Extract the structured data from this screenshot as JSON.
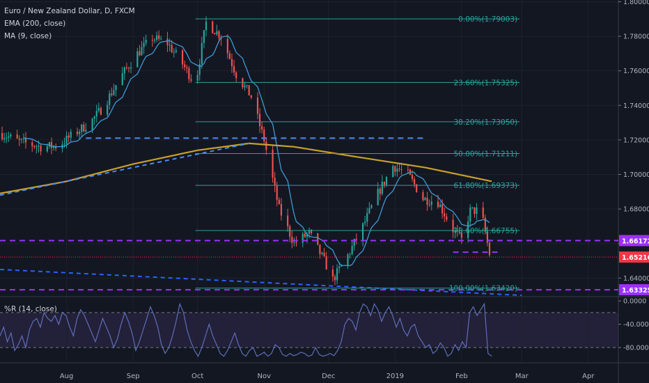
{
  "legend": {
    "main": "Euro / New Zealand Dollar, D, FXCM",
    "ema": "EMA (200, close)",
    "ma": "MA (9, close)",
    "wr": "%R (14, close)"
  },
  "colors": {
    "background": "#131722",
    "bull": "#26a69a",
    "bear": "#ef5350",
    "ema": "#c8a12a",
    "ma": "#3d9bd6",
    "fib": "#26a69a",
    "support_purple": "#9b30ff",
    "trend_blue": "#4c8bf5",
    "price_tag": "#f23645"
  },
  "chart_data": [
    {
      "type": "candlestick",
      "title": "Euro / New Zealand Dollar, D, FXCM",
      "x_range": [
        "2018-07-01",
        "2019-04-15"
      ],
      "ylim": [
        1.62966,
        1.80099
      ],
      "y_ticks": [
        "1.80000",
        "1.78000",
        "1.76000",
        "1.74000",
        "1.72000",
        "1.70000",
        "1.68000",
        "1.66000",
        "1.64000"
      ],
      "x_ticks": [
        {
          "date": "2018-08-01",
          "label": "Aug"
        },
        {
          "date": "2018-09-01",
          "label": "Sep"
        },
        {
          "date": "2018-10-01",
          "label": "Oct"
        },
        {
          "date": "2018-11-01",
          "label": "Nov"
        },
        {
          "date": "2018-12-01",
          "label": "Dec"
        },
        {
          "date": "2019-01-01",
          "label": "2019"
        },
        {
          "date": "2019-02-01",
          "label": "Feb"
        },
        {
          "date": "2019-03-01",
          "label": "Mar"
        },
        {
          "date": "2019-04-01",
          "label": "Apr"
        }
      ],
      "close_path": [
        [
          "2018-07-01",
          1.724
        ],
        [
          "2018-07-10",
          1.719
        ],
        [
          "2018-07-20",
          1.716
        ],
        [
          "2018-07-28",
          1.7165
        ],
        [
          "2018-08-05",
          1.724
        ],
        [
          "2018-08-12",
          1.73
        ],
        [
          "2018-08-18",
          1.739
        ],
        [
          "2018-08-26",
          1.756
        ],
        [
          "2018-09-03",
          1.77
        ],
        [
          "2018-09-10",
          1.779
        ],
        [
          "2018-09-17",
          1.776
        ],
        [
          "2018-09-24",
          1.764
        ],
        [
          "2018-09-30",
          1.752
        ],
        [
          "2018-10-05",
          1.788
        ],
        [
          "2018-10-12",
          1.78
        ],
        [
          "2018-10-19",
          1.758
        ],
        [
          "2018-10-26",
          1.745
        ],
        [
          "2018-11-01",
          1.72
        ],
        [
          "2018-11-08",
          1.68
        ],
        [
          "2018-11-15",
          1.66
        ],
        [
          "2018-11-22",
          1.666
        ],
        [
          "2018-11-29",
          1.65
        ],
        [
          "2018-12-03",
          1.639
        ],
        [
          "2018-12-10",
          1.653
        ],
        [
          "2018-12-17",
          1.67
        ],
        [
          "2018-12-24",
          1.689
        ],
        [
          "2018-12-31",
          1.705
        ],
        [
          "2019-01-07",
          1.7
        ],
        [
          "2019-01-14",
          1.686
        ],
        [
          "2019-01-21",
          1.684
        ],
        [
          "2019-01-28",
          1.668
        ],
        [
          "2019-02-01",
          1.662
        ],
        [
          "2019-02-05",
          1.679
        ],
        [
          "2019-02-10",
          1.679
        ],
        [
          "2019-02-14",
          1.654
        ]
      ],
      "ema200": [
        [
          "2018-07-01",
          1.689
        ],
        [
          "2018-08-01",
          1.696
        ],
        [
          "2018-09-01",
          1.706
        ],
        [
          "2018-10-01",
          1.714
        ],
        [
          "2018-10-25",
          1.718
        ],
        [
          "2018-11-15",
          1.716
        ],
        [
          "2018-12-15",
          1.71
        ],
        [
          "2019-01-15",
          1.704
        ],
        [
          "2019-02-15",
          1.696
        ]
      ],
      "fib_start": "2018-09-30",
      "fib_end": "2019-02-28",
      "fib_levels": [
        {
          "label": "0.00%(1.79003)",
          "value": 1.79003
        },
        {
          "label": "23.60%(1.75325)",
          "value": 1.75325
        },
        {
          "label": "38.20%(1.73050)",
          "value": 1.7305
        },
        {
          "label": "50.00%(1.71211)",
          "value": 1.71211
        },
        {
          "label": "61.80%(1.69373)",
          "value": 1.69373
        },
        {
          "label": "78.60%(1.66755)",
          "value": 1.66755
        },
        {
          "label": "100.00%(1.63420)",
          "value": 1.6342
        }
      ],
      "price_tags": [
        {
          "label": "1.66172",
          "value": 1.66172,
          "color": "#9b30ff"
        },
        {
          "label": "1.65216",
          "value": 1.65216,
          "color": "#f23645"
        },
        {
          "label": "1.63325",
          "value": 1.63325,
          "color": "#9b30ff"
        }
      ],
      "horizontal_lines": [
        {
          "value": 1.66172,
          "style": "dashed",
          "color": "#9b30ff"
        },
        {
          "value": 1.63325,
          "style": "dashed",
          "color": "#9b30ff"
        },
        {
          "value": 1.65216,
          "style": "dotted",
          "color": "#f23645"
        },
        {
          "value": 1.721,
          "style": "dashed",
          "color": "#4c8bf5",
          "from": "2018-08-10",
          "to": "2019-01-15"
        },
        {
          "value": 1.655,
          "style": "dashed",
          "color": "#9b30ff",
          "from": "2019-01-28",
          "to": "2019-02-18"
        }
      ],
      "trend_lines": [
        {
          "from": [
            "2018-07-01",
            1.688
          ],
          "to": [
            "2018-10-25",
            1.718
          ],
          "color": "#4c8bf5"
        },
        {
          "from": [
            "2018-07-01",
            1.645
          ],
          "to": [
            "2019-03-01",
            1.63
          ],
          "color": "#2962ff"
        }
      ]
    },
    {
      "type": "line",
      "title": "%R (14, close)",
      "ylim": [
        -105,
        5
      ],
      "y_ticks": [
        "0.0000",
        "-40.0000",
        "-80.0000"
      ],
      "bands": [
        -20,
        -80
      ],
      "values": [
        -60,
        -45,
        -70,
        -55,
        -85,
        -75,
        -60,
        -80,
        -50,
        -35,
        -30,
        -45,
        -20,
        -30,
        -35,
        -25,
        -40,
        -20,
        -25,
        -45,
        -60,
        -30,
        -15,
        -25,
        -40,
        -55,
        -70,
        -50,
        -30,
        -45,
        -60,
        -80,
        -65,
        -40,
        -20,
        -35,
        -55,
        -85,
        -70,
        -50,
        -30,
        -10,
        -25,
        -45,
        -75,
        -90,
        -80,
        -60,
        -35,
        -5,
        -20,
        -50,
        -70,
        -85,
        -95,
        -80,
        -60,
        -40,
        -60,
        -75,
        -90,
        -95,
        -85,
        -70,
        -55,
        -75,
        -90,
        -95,
        -85,
        -80,
        -95,
        -92,
        -88,
        -95,
        -90,
        -75,
        -80,
        -92,
        -95,
        -90,
        -94,
        -92,
        -88,
        -90,
        -95,
        -93,
        -80,
        -92,
        -95,
        -93,
        -90,
        -94,
        -85,
        -70,
        -40,
        -30,
        -35,
        -50,
        -20,
        -5,
        -10,
        -25,
        -5,
        -15,
        -35,
        -20,
        -10,
        -25,
        -45,
        -30,
        -50,
        -60,
        -45,
        -40,
        -60,
        -70,
        -80,
        -75,
        -90,
        -85,
        -72,
        -80,
        -95,
        -90,
        -75,
        -85,
        -70,
        -80,
        -20,
        -10,
        -25,
        -15,
        -5,
        -90,
        -95
      ]
    }
  ]
}
